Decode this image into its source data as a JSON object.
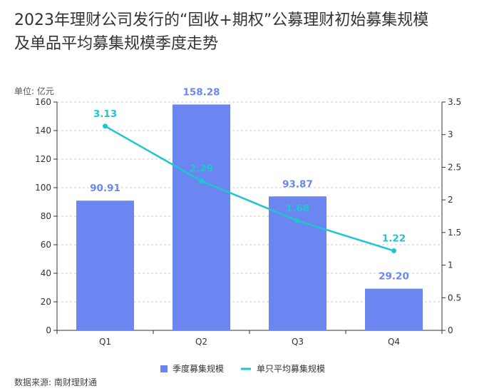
{
  "title_lines": [
    "2023年理财公司发行的“固收+期权”公募理财初始募集规模",
    "及单品平均募集规模季度走势"
  ],
  "unit_label": "单位: 亿元",
  "source_note": "数据来源: 南财理财通",
  "colors": {
    "bar": "#6b86f0",
    "line": "#1ec6cf",
    "grid": "#cccccc",
    "axis": "#333333"
  },
  "chart_data": {
    "type": "bar",
    "categories": [
      "Q1",
      "Q2",
      "Q3",
      "Q4"
    ],
    "series": [
      {
        "name": "季度募集规模",
        "type": "bar",
        "axis": "left",
        "values": [
          90.91,
          158.28,
          93.87,
          29.2
        ],
        "labels": [
          "90.91",
          "158.28",
          "93.87",
          "29.20"
        ]
      },
      {
        "name": "单只平均募集规模",
        "type": "line",
        "axis": "right",
        "values": [
          3.13,
          2.29,
          1.68,
          1.22
        ],
        "labels": [
          "3.13",
          "2.29",
          "1.68",
          "1.22"
        ]
      }
    ],
    "y_left": {
      "min": 0,
      "max": 160,
      "ticks": [
        "0",
        "20",
        "40",
        "60",
        "80",
        "100",
        "120",
        "140",
        "160"
      ]
    },
    "y_right": {
      "min": 0,
      "max": 3.5,
      "ticks": [
        "0",
        "0.5",
        "1",
        "1.5",
        "2",
        "2.5",
        "3",
        "3.5"
      ]
    },
    "grid": true,
    "legend_position": "bottom"
  }
}
